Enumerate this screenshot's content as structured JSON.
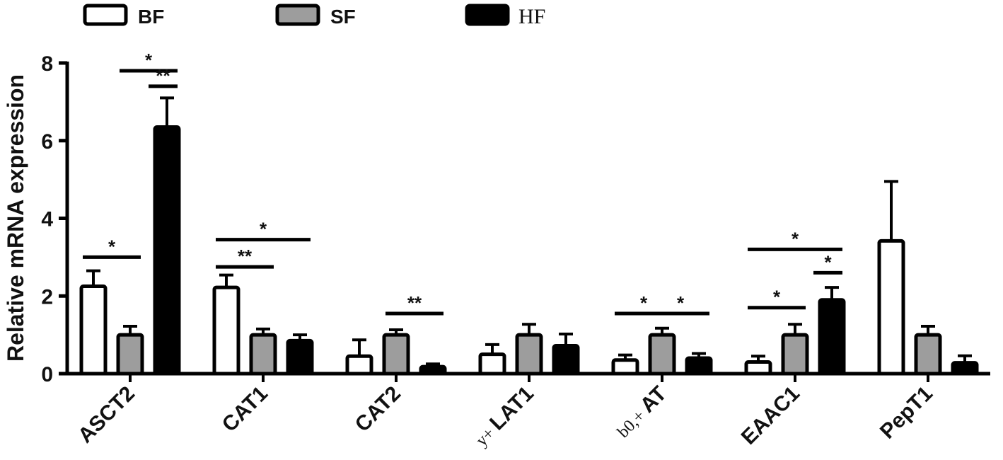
{
  "chart_data": {
    "type": "bar",
    "ylabel": "Relative mRNA expression",
    "ylim": [
      0,
      8
    ],
    "yticks": [
      0,
      2,
      4,
      6,
      8
    ],
    "categories": [
      {
        "label": "ASCT2"
      },
      {
        "label": "CAT1"
      },
      {
        "label": "CAT2"
      },
      {
        "label": "LAT1",
        "prefix": "y+"
      },
      {
        "label": "AT",
        "prefix": "b0,+"
      },
      {
        "label": "EAAC1"
      },
      {
        "label": "PepT1"
      }
    ],
    "series": [
      {
        "name": "BF",
        "color": "#ffffff",
        "values": [
          2.25,
          2.22,
          0.45,
          0.5,
          0.35,
          0.3,
          3.42
        ],
        "errors": [
          0.4,
          0.32,
          0.42,
          0.25,
          0.13,
          0.15,
          1.53
        ]
      },
      {
        "name": "SF",
        "color": "#9d9d9d",
        "values": [
          1.0,
          1.0,
          1.0,
          1.0,
          1.0,
          1.0,
          1.0
        ],
        "errors": [
          0.22,
          0.15,
          0.13,
          0.27,
          0.17,
          0.27,
          0.22
        ]
      },
      {
        "name": "HF",
        "color": "#000000",
        "values": [
          6.35,
          0.85,
          0.18,
          0.72,
          0.4,
          1.9,
          0.28
        ],
        "errors": [
          0.75,
          0.15,
          0.07,
          0.3,
          0.12,
          0.32,
          0.18
        ]
      }
    ],
    "significance": [
      {
        "category": 0,
        "from": 1,
        "to": 2,
        "y": 7.8,
        "label": "*"
      },
      {
        "category": 0,
        "from": 1.5,
        "to": 2,
        "y": 7.4,
        "label": "**"
      },
      {
        "category": 0,
        "from": 0,
        "to": 1,
        "y": 3.0,
        "label": "*"
      },
      {
        "category": 1,
        "from": 0,
        "to": 2,
        "y": 3.45,
        "label": "*"
      },
      {
        "category": 1,
        "from": 0,
        "to": 1,
        "y": 2.75,
        "label": "**"
      },
      {
        "category": 2,
        "from": 1,
        "to": 2,
        "y": 1.55,
        "label": "**"
      },
      {
        "category": 4,
        "from": 0,
        "to": 1,
        "y": 1.55,
        "label": "*"
      },
      {
        "category": 4,
        "from": 1,
        "to": 2,
        "y": 1.55,
        "label": "*"
      },
      {
        "category": 5,
        "from": 0,
        "to": 2,
        "y": 3.2,
        "label": "*"
      },
      {
        "category": 5,
        "from": 1.5,
        "to": 2,
        "y": 2.6,
        "label": "*"
      },
      {
        "category": 5,
        "from": 0,
        "to": 1,
        "y": 1.7,
        "label": "*"
      }
    ]
  }
}
